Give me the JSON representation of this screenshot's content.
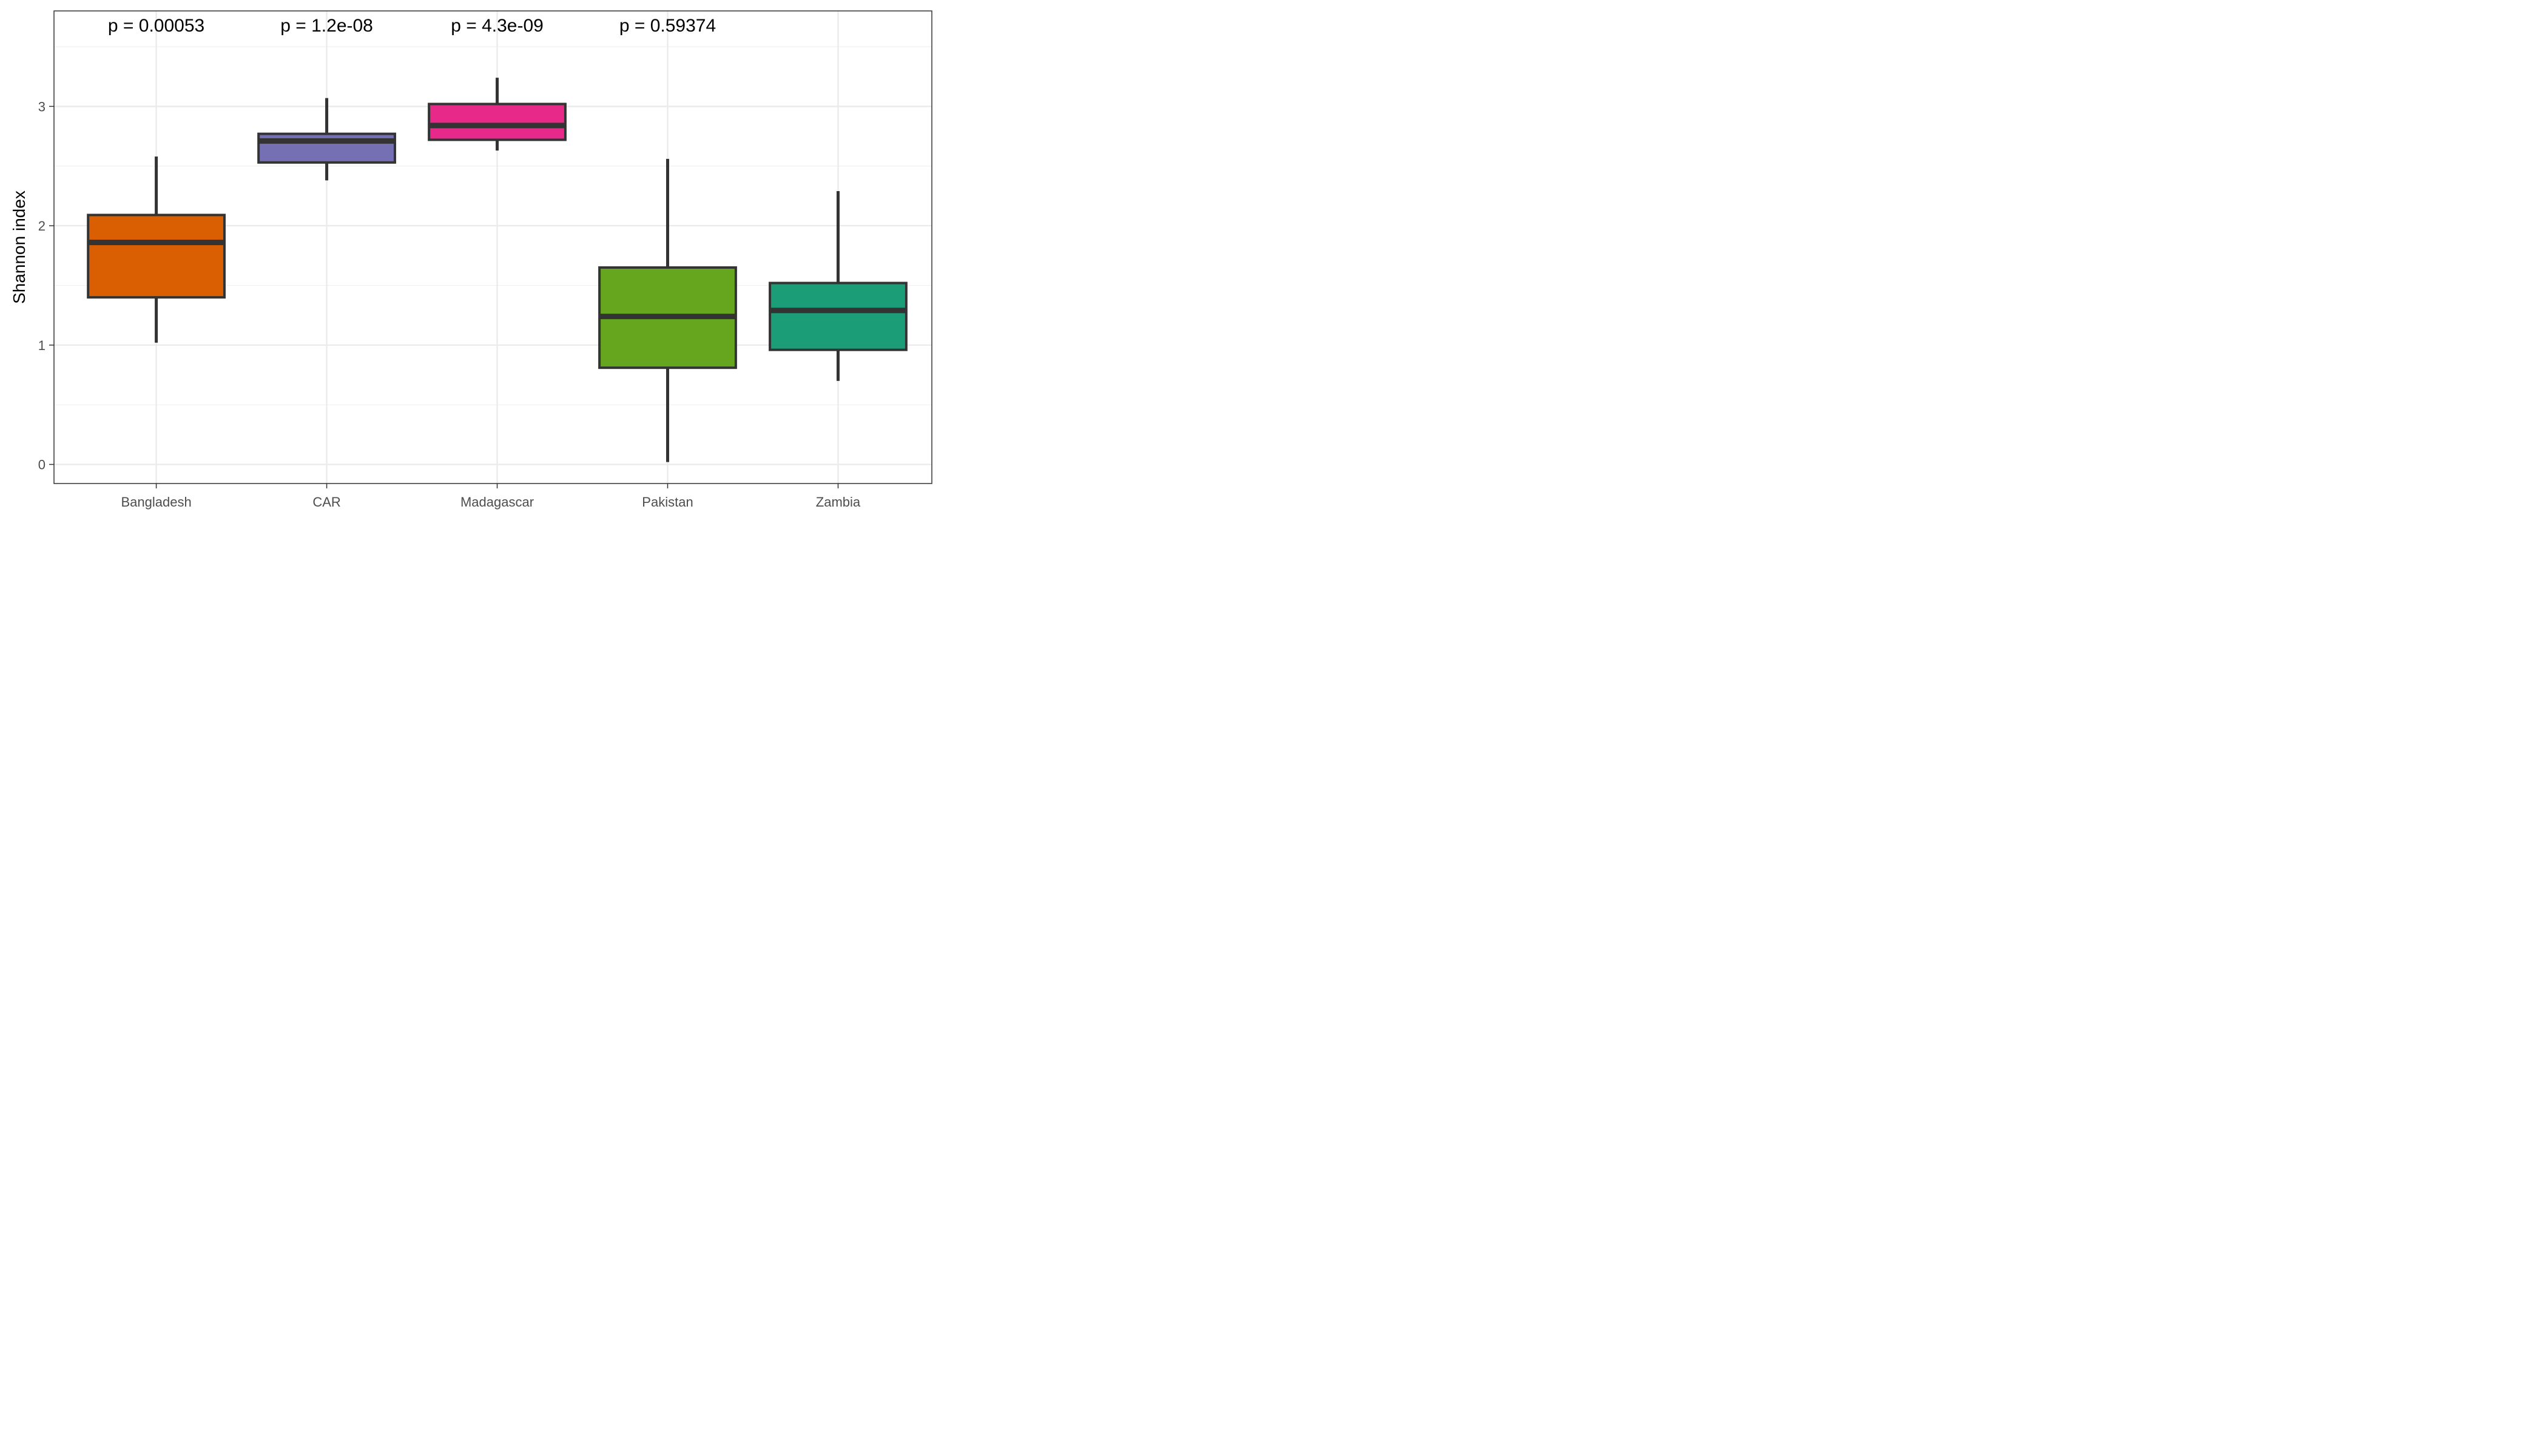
{
  "chart_data": {
    "type": "boxplot",
    "title": "",
    "xlabel": "",
    "ylabel": "Shannon index",
    "ylim": [
      -0.16,
      3.8
    ],
    "yticks": [
      0,
      1,
      2,
      3
    ],
    "grid": true,
    "legend": "none",
    "categories": [
      "Bangladesh",
      "CAR",
      "Madagascar",
      "Pakistan",
      "Zambia"
    ],
    "boxes": [
      {
        "category": "Bangladesh",
        "whisker_low": 1.02,
        "q1": 1.4,
        "median": 1.86,
        "q3": 2.09,
        "whisker_high": 2.58,
        "color": "#D95F02",
        "p_label": "p = 0.00053"
      },
      {
        "category": "CAR",
        "whisker_low": 2.38,
        "q1": 2.53,
        "median": 2.71,
        "q3": 2.77,
        "whisker_high": 3.07,
        "color": "#7570B3",
        "p_label": "p = 1.2e-08"
      },
      {
        "category": "Madagascar",
        "whisker_low": 2.63,
        "q1": 2.72,
        "median": 2.84,
        "q3": 3.02,
        "whisker_high": 3.24,
        "color": "#E7298A",
        "p_label": "p = 4.3e-09"
      },
      {
        "category": "Pakistan",
        "whisker_low": 0.02,
        "q1": 0.81,
        "median": 1.24,
        "q3": 1.65,
        "whisker_high": 2.56,
        "color": "#66A61E",
        "p_label": "p = 0.59374"
      },
      {
        "category": "Zambia",
        "whisker_low": 0.7,
        "q1": 0.96,
        "median": 1.29,
        "q3": 1.52,
        "whisker_high": 2.29,
        "color": "#1B9E77",
        "p_label": ""
      }
    ]
  }
}
